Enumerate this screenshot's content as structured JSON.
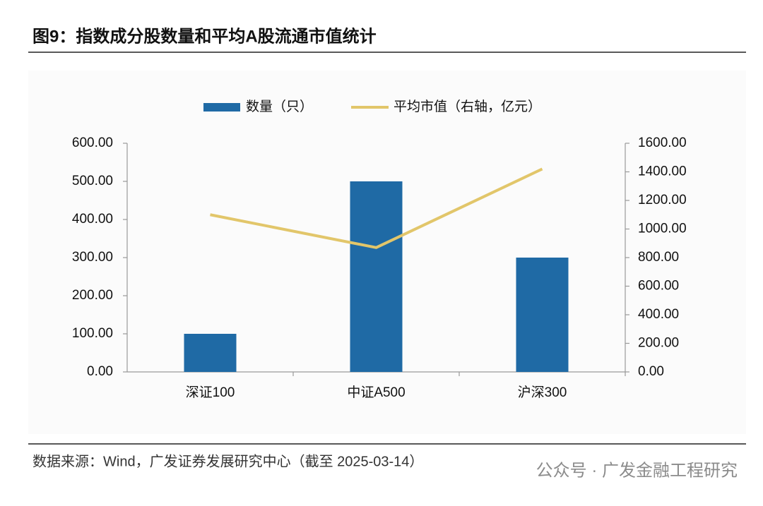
{
  "title": "图9：指数成分股数量和平均A股流通市值统计",
  "chart_data": {
    "type": "bar",
    "categories": [
      "深证100",
      "中证A500",
      "沪深300"
    ],
    "series": [
      {
        "name": "数量（只）",
        "type": "bar",
        "color": "#1f6aa5",
        "values": [
          100,
          500,
          300
        ]
      },
      {
        "name": "平均市值（右轴，亿元）",
        "type": "line",
        "axis": "y2",
        "color": "#e2c66a",
        "values": [
          1100,
          870,
          1420
        ]
      }
    ],
    "ylim": [
      0,
      600
    ],
    "yticks": [
      {
        "value": 0,
        "label": "0.00"
      },
      {
        "value": 100,
        "label": "100.00"
      },
      {
        "value": 200,
        "label": "200.00"
      },
      {
        "value": 300,
        "label": "300.00"
      },
      {
        "value": 400,
        "label": "400.00"
      },
      {
        "value": 500,
        "label": "500.00"
      },
      {
        "value": 600,
        "label": "600.00"
      }
    ],
    "y2lim": [
      0,
      1600
    ],
    "y2ticks": [
      {
        "value": 0,
        "label": "0.00"
      },
      {
        "value": 200,
        "label": "200.00"
      },
      {
        "value": 400,
        "label": "400.00"
      },
      {
        "value": 600,
        "label": "600.00"
      },
      {
        "value": 800,
        "label": "800.00"
      },
      {
        "value": 1000,
        "label": "1000.00"
      },
      {
        "value": 1200,
        "label": "1200.00"
      },
      {
        "value": 1400,
        "label": "1400.00"
      },
      {
        "value": 1600,
        "label": "1600.00"
      }
    ],
    "legend": "top"
  },
  "source": "数据来源：Wind，广发证券发展研究中心（截至 2025-03-14）",
  "watermark": "公众号 · 广发金融工程研究"
}
